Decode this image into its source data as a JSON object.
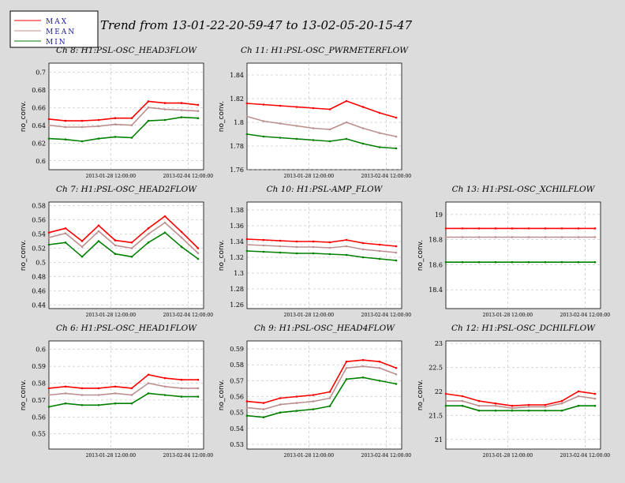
{
  "title": "Trend from 13-01-22-20-59-47 to 13-02-05-20-15-47",
  "legend": [
    {
      "label": "MAX",
      "color": "#ff0000"
    },
    {
      "label": "MEAN",
      "color": "#bc8f8f"
    },
    {
      "label": "MIN",
      "color": "#008000"
    }
  ],
  "chart_data": [
    {
      "type": "line",
      "title": "Ch 8: H1:PSL-OSC_HEAD3FLOW",
      "ylabel": "no_conv.",
      "ylim": [
        0.59,
        0.71
      ],
      "yticks": [
        "0.7",
        "0.68",
        "0.66",
        "0.64",
        "0.62",
        "0.6"
      ],
      "x": [
        0,
        1.5,
        3,
        4.5,
        6,
        7.5,
        9,
        10.5,
        12,
        13.5
      ],
      "xtick_labels": [
        "2013-01-28 12:00:00",
        "2013-02-04 12:00:00"
      ],
      "xtick_pos": [
        5.6,
        12.6
      ],
      "grid": true,
      "series": [
        {
          "name": "MAX",
          "values": [
            0.647,
            0.645,
            0.645,
            0.646,
            0.648,
            0.648,
            0.667,
            0.665,
            0.665,
            0.663
          ]
        },
        {
          "name": "MEAN",
          "values": [
            0.64,
            0.638,
            0.638,
            0.639,
            0.641,
            0.64,
            0.66,
            0.658,
            0.657,
            0.656
          ]
        },
        {
          "name": "MIN",
          "values": [
            0.625,
            0.624,
            0.622,
            0.625,
            0.627,
            0.626,
            0.645,
            0.646,
            0.649,
            0.648
          ]
        }
      ]
    },
    {
      "type": "line",
      "title": "Ch 11: H1:PSL-OSC_PWRMETERFLOW",
      "ylabel": "no_conv.",
      "ylim": [
        1.76,
        1.85
      ],
      "yticks": [
        "1.84",
        "1.82",
        "1.8",
        "1.78",
        "1.76"
      ],
      "x": [
        0,
        1.5,
        3,
        4.5,
        6,
        7.5,
        9,
        10.5,
        12,
        13.5
      ],
      "xtick_labels": [
        "2013-01-28 12:00:00",
        "2013-02-04 12:00:00"
      ],
      "xtick_pos": [
        5.6,
        12.6
      ],
      "grid": true,
      "series": [
        {
          "name": "MAX",
          "values": [
            1.816,
            1.815,
            1.814,
            1.813,
            1.812,
            1.811,
            1.818,
            1.813,
            1.808,
            1.804
          ]
        },
        {
          "name": "MEAN",
          "values": [
            1.805,
            1.801,
            1.799,
            1.797,
            1.795,
            1.794,
            1.8,
            1.795,
            1.791,
            1.788
          ]
        },
        {
          "name": "MIN",
          "values": [
            1.79,
            1.788,
            1.787,
            1.786,
            1.785,
            1.784,
            1.786,
            1.782,
            1.779,
            1.778
          ]
        }
      ]
    },
    {
      "type": "line",
      "title": "Ch 7: H1:PSL-OSC_HEAD2FLOW",
      "ylabel": "no_conv.",
      "ylim": [
        0.435,
        0.585
      ],
      "yticks": [
        "0.58",
        "0.56",
        "0.54",
        "0.52",
        "0.5",
        "0.48",
        "0.46",
        "0.44"
      ],
      "x": [
        0,
        1.5,
        3,
        4.5,
        6,
        7.5,
        9,
        10.5,
        12,
        13.5
      ],
      "xtick_labels": [
        "2013-01-28 12:00:00",
        "2013-02-04 12:00:00"
      ],
      "xtick_pos": [
        5.6,
        12.6
      ],
      "grid": true,
      "series": [
        {
          "name": "MAX",
          "values": [
            0.542,
            0.548,
            0.53,
            0.552,
            0.531,
            0.528,
            0.548,
            0.565,
            0.543,
            0.52
          ]
        },
        {
          "name": "MEAN",
          "values": [
            0.535,
            0.541,
            0.522,
            0.544,
            0.524,
            0.52,
            0.54,
            0.556,
            0.535,
            0.513
          ]
        },
        {
          "name": "MIN",
          "values": [
            0.525,
            0.528,
            0.508,
            0.53,
            0.512,
            0.508,
            0.528,
            0.542,
            0.522,
            0.505
          ]
        }
      ]
    },
    {
      "type": "line",
      "title": "Ch 10: H1:PSL-AMP_FLOW",
      "ylabel": "no_conv.",
      "ylim": [
        1.255,
        1.39
      ],
      "yticks": [
        "1.38",
        "1.36",
        "1.34",
        "1.32",
        "1.3",
        "1.28",
        "1.26"
      ],
      "x": [
        0,
        1.5,
        3,
        4.5,
        6,
        7.5,
        9,
        10.5,
        12,
        13.5
      ],
      "xtick_labels": [
        "2013-01-28 12:00:00",
        "2013-02-04 12:00:00"
      ],
      "xtick_pos": [
        5.6,
        12.6
      ],
      "grid": true,
      "series": [
        {
          "name": "MAX",
          "values": [
            1.343,
            1.342,
            1.341,
            1.34,
            1.34,
            1.339,
            1.342,
            1.338,
            1.336,
            1.334
          ]
        },
        {
          "name": "MEAN",
          "values": [
            1.336,
            1.335,
            1.334,
            1.333,
            1.333,
            1.332,
            1.334,
            1.33,
            1.328,
            1.326
          ]
        },
        {
          "name": "MIN",
          "values": [
            1.328,
            1.327,
            1.326,
            1.325,
            1.325,
            1.324,
            1.323,
            1.32,
            1.318,
            1.316
          ]
        }
      ]
    },
    {
      "type": "line",
      "title": "Ch 13: H1:PSL-OSC_XCHILFLOW",
      "ylabel": "no_conv.",
      "ylim": [
        18.25,
        19.1
      ],
      "yticks": [
        "19",
        "18.8",
        "18.6",
        "18.4"
      ],
      "x": [
        0,
        1.5,
        3,
        4.5,
        6,
        7.5,
        9,
        10.5,
        12,
        13.5
      ],
      "xtick_labels": [
        "2013-01-28 12:00:00",
        "2013-02-04 12:00:00"
      ],
      "xtick_pos": [
        5.6,
        12.6
      ],
      "grid": true,
      "series": [
        {
          "name": "MAX",
          "values": [
            18.89,
            18.89,
            18.89,
            18.89,
            18.89,
            18.89,
            18.89,
            18.89,
            18.89,
            18.89
          ]
        },
        {
          "name": "MEAN",
          "values": [
            18.82,
            18.82,
            18.82,
            18.82,
            18.82,
            18.82,
            18.82,
            18.82,
            18.82,
            18.82
          ]
        },
        {
          "name": "MIN",
          "values": [
            18.62,
            18.62,
            18.62,
            18.62,
            18.62,
            18.62,
            18.62,
            18.62,
            18.62,
            18.62
          ]
        }
      ]
    },
    {
      "type": "line",
      "title": "Ch 6: H1:PSL-OSC_HEAD1FLOW",
      "ylabel": "no_conv.",
      "ylim": [
        0.541,
        0.605
      ],
      "yticks": [
        "0.6",
        "0.59",
        "0.58",
        "0.57",
        "0.56",
        "0.55"
      ],
      "x": [
        0,
        1.5,
        3,
        4.5,
        6,
        7.5,
        9,
        10.5,
        12,
        13.5
      ],
      "xtick_labels": [
        "2013-01-28 12:00:00",
        "2013-02-04 12:00:00"
      ],
      "xtick_pos": [
        5.6,
        12.6
      ],
      "grid": true,
      "series": [
        {
          "name": "MAX",
          "values": [
            0.577,
            0.578,
            0.577,
            0.577,
            0.578,
            0.577,
            0.585,
            0.583,
            0.582,
            0.582
          ]
        },
        {
          "name": "MEAN",
          "values": [
            0.573,
            0.574,
            0.573,
            0.573,
            0.574,
            0.573,
            0.58,
            0.578,
            0.577,
            0.577
          ]
        },
        {
          "name": "MIN",
          "values": [
            0.566,
            0.568,
            0.567,
            0.567,
            0.568,
            0.568,
            0.574,
            0.573,
            0.572,
            0.572
          ]
        }
      ]
    },
    {
      "type": "line",
      "title": "Ch 9: H1:PSL-OSC_HEAD4FLOW",
      "ylabel": "no_conv.",
      "ylim": [
        0.527,
        0.595
      ],
      "yticks": [
        "0.59",
        "0.58",
        "0.57",
        "0.56",
        "0.55",
        "0.54",
        "0.53"
      ],
      "x": [
        0,
        1.5,
        3,
        4.5,
        6,
        7.5,
        9,
        10.5,
        12,
        13.5
      ],
      "xtick_labels": [
        "2013-01-28 12:00:00",
        "2013-02-04 12:00:00"
      ],
      "xtick_pos": [
        5.6,
        12.6
      ],
      "grid": true,
      "series": [
        {
          "name": "MAX",
          "values": [
            0.557,
            0.556,
            0.559,
            0.56,
            0.561,
            0.563,
            0.582,
            0.583,
            0.582,
            0.578
          ]
        },
        {
          "name": "MEAN",
          "values": [
            0.553,
            0.552,
            0.555,
            0.556,
            0.557,
            0.559,
            0.578,
            0.579,
            0.578,
            0.574
          ]
        },
        {
          "name": "MIN",
          "values": [
            0.548,
            0.547,
            0.55,
            0.551,
            0.552,
            0.554,
            0.571,
            0.572,
            0.57,
            0.568
          ]
        }
      ]
    },
    {
      "type": "line",
      "title": "Ch 12: H1:PSL-OSC_DCHILFLOW",
      "ylabel": "no_conv.",
      "ylim": [
        20.8,
        23.05
      ],
      "yticks": [
        "23",
        "22.5",
        "22",
        "21.5",
        "21"
      ],
      "x": [
        0,
        1.5,
        3,
        4.5,
        6,
        7.5,
        9,
        10.5,
        12,
        13.5
      ],
      "xtick_labels": [
        "2013-01-28 12:00:00",
        "2013-02-04 12:00:00"
      ],
      "xtick_pos": [
        5.6,
        12.6
      ],
      "grid": true,
      "series": [
        {
          "name": "MAX",
          "values": [
            21.95,
            21.9,
            21.8,
            21.75,
            21.7,
            21.72,
            21.72,
            21.8,
            22.0,
            21.95
          ]
        },
        {
          "name": "MEAN",
          "values": [
            21.8,
            21.8,
            21.7,
            21.7,
            21.65,
            21.68,
            21.68,
            21.75,
            21.9,
            21.85
          ]
        },
        {
          "name": "MIN",
          "values": [
            21.7,
            21.7,
            21.6,
            21.6,
            21.6,
            21.6,
            21.6,
            21.6,
            21.7,
            21.7
          ]
        }
      ]
    }
  ]
}
